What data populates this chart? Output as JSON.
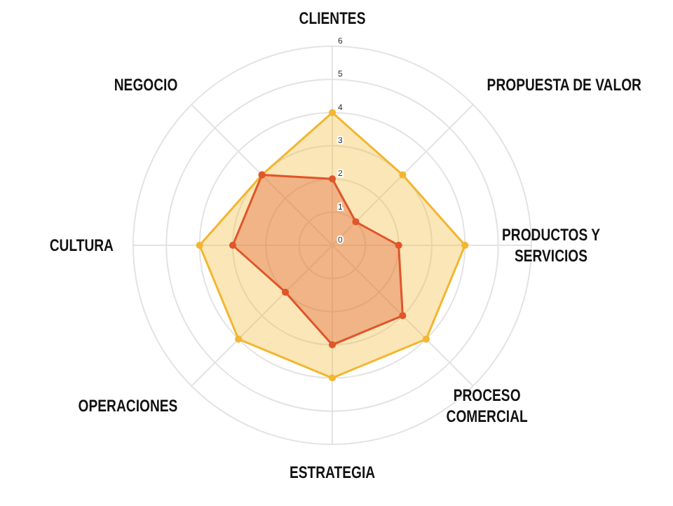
{
  "chart_data": {
    "type": "radar",
    "categories": [
      "CLIENTES",
      "PROPUESTA DE VALOR",
      "PRODUCTOS Y SERVICIOS",
      "PROCESO COMERCIAL",
      "ESTRATEGIA",
      "OPERACIONES",
      "CULTURA",
      "NEGOCIO"
    ],
    "series": [
      {
        "color": "#f2b630",
        "values": [
          4,
          3,
          4,
          4,
          4,
          4,
          4,
          3
        ]
      },
      {
        "color": "#e0552a",
        "values": [
          2,
          1,
          2,
          3,
          3,
          2,
          3,
          3
        ]
      }
    ],
    "ylim": [
      0,
      6
    ],
    "yticks": [
      0,
      1,
      2,
      3,
      4,
      5,
      6
    ],
    "grid": true,
    "marker": "circle"
  }
}
